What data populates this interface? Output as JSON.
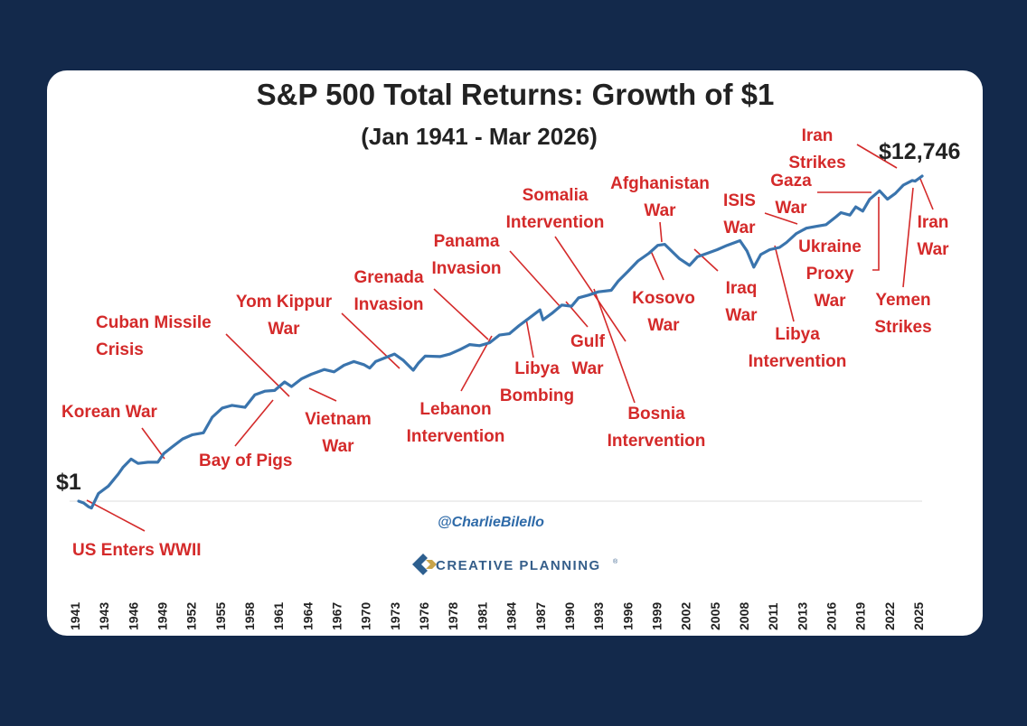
{
  "chart_data": {
    "type": "line",
    "title": "S&P 500 Total Returns: Growth of $1",
    "subtitle": "(Jan 1941 - Mar 2026)",
    "scale": "log",
    "start_label": "$1",
    "end_label": "$12,746",
    "start_value": 1,
    "end_value": 12746,
    "series": [
      {
        "name": "S&P 500 Total Return",
        "color": "#3a74ad",
        "x": [
          1941.0,
          1941.5,
          1942.0,
          1942.3,
          1943.0,
          1944.0,
          1945.0,
          1945.5,
          1946.3,
          1947.0,
          1948.0,
          1949.0,
          1949.6,
          1950.5,
          1951.5,
          1952.5,
          1953.6,
          1954.5,
          1955.5,
          1956.5,
          1957.8,
          1958.8,
          1959.8,
          1960.8,
          1961.8,
          1962.5,
          1963.5,
          1964.5,
          1965.8,
          1966.8,
          1967.8,
          1968.8,
          1969.8,
          1970.4,
          1971.0,
          1972.0,
          1972.9,
          1973.8,
          1974.8,
          1975.3,
          1976.0,
          1977.5,
          1978.5,
          1979.5,
          1980.5,
          1981.5,
          1982.5,
          1983.5,
          1984.5,
          1985.5,
          1986.5,
          1987.6,
          1987.9,
          1988.8,
          1989.8,
          1990.8,
          1991.5,
          1992.5,
          1993.5,
          1994.8,
          1995.5,
          1996.5,
          1997.5,
          1998.6,
          1999.5,
          2000.2,
          2001.0,
          2001.7,
          2002.7,
          2003.5,
          2004.5,
          2005.5,
          2006.5,
          2007.8,
          2008.5,
          2009.2,
          2009.9,
          2010.8,
          2011.8,
          2012.5,
          2013.5,
          2014.5,
          2015.5,
          2016.5,
          2017.5,
          2018.0,
          2018.9,
          2019.5,
          2020.2,
          2020.9,
          2021.9,
          2022.7,
          2023.5,
          2024.3,
          2025.2,
          2025.5,
          2026.2
        ],
        "y": [
          1.0,
          0.95,
          0.85,
          0.82,
          1.25,
          1.55,
          2.2,
          2.7,
          3.4,
          3.0,
          3.1,
          3.1,
          4.0,
          4.9,
          6.1,
          6.9,
          7.3,
          11.5,
          15.0,
          16.2,
          15.3,
          22.0,
          24.5,
          25.0,
          32.0,
          28.0,
          35.0,
          40.0,
          46.0,
          43.0,
          52.0,
          58.0,
          53.0,
          48.0,
          58.0,
          65.0,
          72.0,
          60.0,
          45.0,
          55.0,
          68.0,
          67.0,
          72.0,
          82.0,
          95.0,
          92.0,
          100.0,
          125.0,
          130.0,
          165.0,
          205.0,
          260.0,
          195.0,
          235.0,
          300.0,
          290.0,
          370.0,
          400.0,
          440.0,
          460.0,
          600.0,
          800.0,
          1080.0,
          1350.0,
          1700.0,
          1750.0,
          1400.0,
          1150.0,
          950.0,
          1220.0,
          1350.0,
          1500.0,
          1700.0,
          1950.0,
          1450.0,
          900.0,
          1300.0,
          1500.0,
          1600.0,
          1850.0,
          2400.0,
          2800.0,
          2950.0,
          3100.0,
          3900.0,
          4400.0,
          4100.0,
          5200.0,
          4600.0,
          6500.0,
          8300.0,
          6500.0,
          7700.0,
          9800.0,
          11200.0,
          11000.0,
          12746.0
        ]
      }
    ],
    "x_ticks": [
      "1941",
      "1943",
      "1946",
      "1949",
      "1952",
      "1955",
      "1958",
      "1961",
      "1964",
      "1967",
      "1970",
      "1973",
      "1976",
      "1978",
      "1981",
      "1984",
      "1987",
      "1990",
      "1993",
      "1996",
      "1999",
      "2002",
      "2005",
      "2008",
      "2011",
      "2013",
      "2016",
      "2019",
      "2022",
      "2025"
    ],
    "xlim": [
      1941,
      2026.2
    ],
    "ylim": [
      0.8,
      12746
    ],
    "annotations": [
      {
        "id": "us-enters-wwii",
        "lines": [
          "US Enters WWII"
        ]
      },
      {
        "id": "korean-war",
        "lines": [
          "Korean War"
        ]
      },
      {
        "id": "cuban-missile-crisis",
        "lines": [
          "Cuban Missile",
          "Crisis"
        ]
      },
      {
        "id": "bay-of-pigs",
        "lines": [
          "Bay of Pigs"
        ]
      },
      {
        "id": "yom-kippur-war",
        "lines": [
          "Yom Kippur",
          "War"
        ]
      },
      {
        "id": "vietnam-war",
        "lines": [
          "Vietnam",
          "War"
        ]
      },
      {
        "id": "grenada-invasion",
        "lines": [
          "Grenada",
          "Invasion"
        ]
      },
      {
        "id": "lebanon-intervention",
        "lines": [
          "Lebanon",
          "Intervention"
        ]
      },
      {
        "id": "panama-invasion",
        "lines": [
          "Panama",
          "Invasion"
        ]
      },
      {
        "id": "libya-bombing",
        "lines": [
          "Libya",
          "Bombing"
        ]
      },
      {
        "id": "somalia-intervention",
        "lines": [
          "Somalia",
          "Intervention"
        ]
      },
      {
        "id": "gulf-war",
        "lines": [
          "Gulf",
          "War"
        ]
      },
      {
        "id": "bosnia-intervention",
        "lines": [
          "Bosnia",
          "Intervention"
        ]
      },
      {
        "id": "afghanistan-war",
        "lines": [
          "Afghanistan",
          "War"
        ]
      },
      {
        "id": "kosovo-war",
        "lines": [
          "Kosovo",
          "War"
        ]
      },
      {
        "id": "iraq-war",
        "lines": [
          "Iraq",
          "War"
        ]
      },
      {
        "id": "isis-war",
        "lines": [
          "ISIS",
          "War"
        ]
      },
      {
        "id": "libya-intervention",
        "lines": [
          "Libya",
          "Intervention"
        ]
      },
      {
        "id": "gaza-war",
        "lines": [
          "Gaza",
          "War"
        ]
      },
      {
        "id": "ukraine-proxy-war",
        "lines": [
          "Ukraine",
          "Proxy",
          "War"
        ]
      },
      {
        "id": "iran-strikes",
        "lines": [
          "Iran",
          "Strikes"
        ]
      },
      {
        "id": "yemen-strikes",
        "lines": [
          "Yemen",
          "Strikes"
        ]
      },
      {
        "id": "iran-war",
        "lines": [
          "Iran",
          "War"
        ]
      }
    ]
  },
  "watermark": {
    "handle": "@CharlieBilello",
    "brand": "CREATIVE PLANNING",
    "brand_mark": "®"
  },
  "colors": {
    "background": "#13294b",
    "card": "#ffffff",
    "line": "#3a74ad",
    "annotation": "#d42a2a",
    "text": "#222222"
  }
}
